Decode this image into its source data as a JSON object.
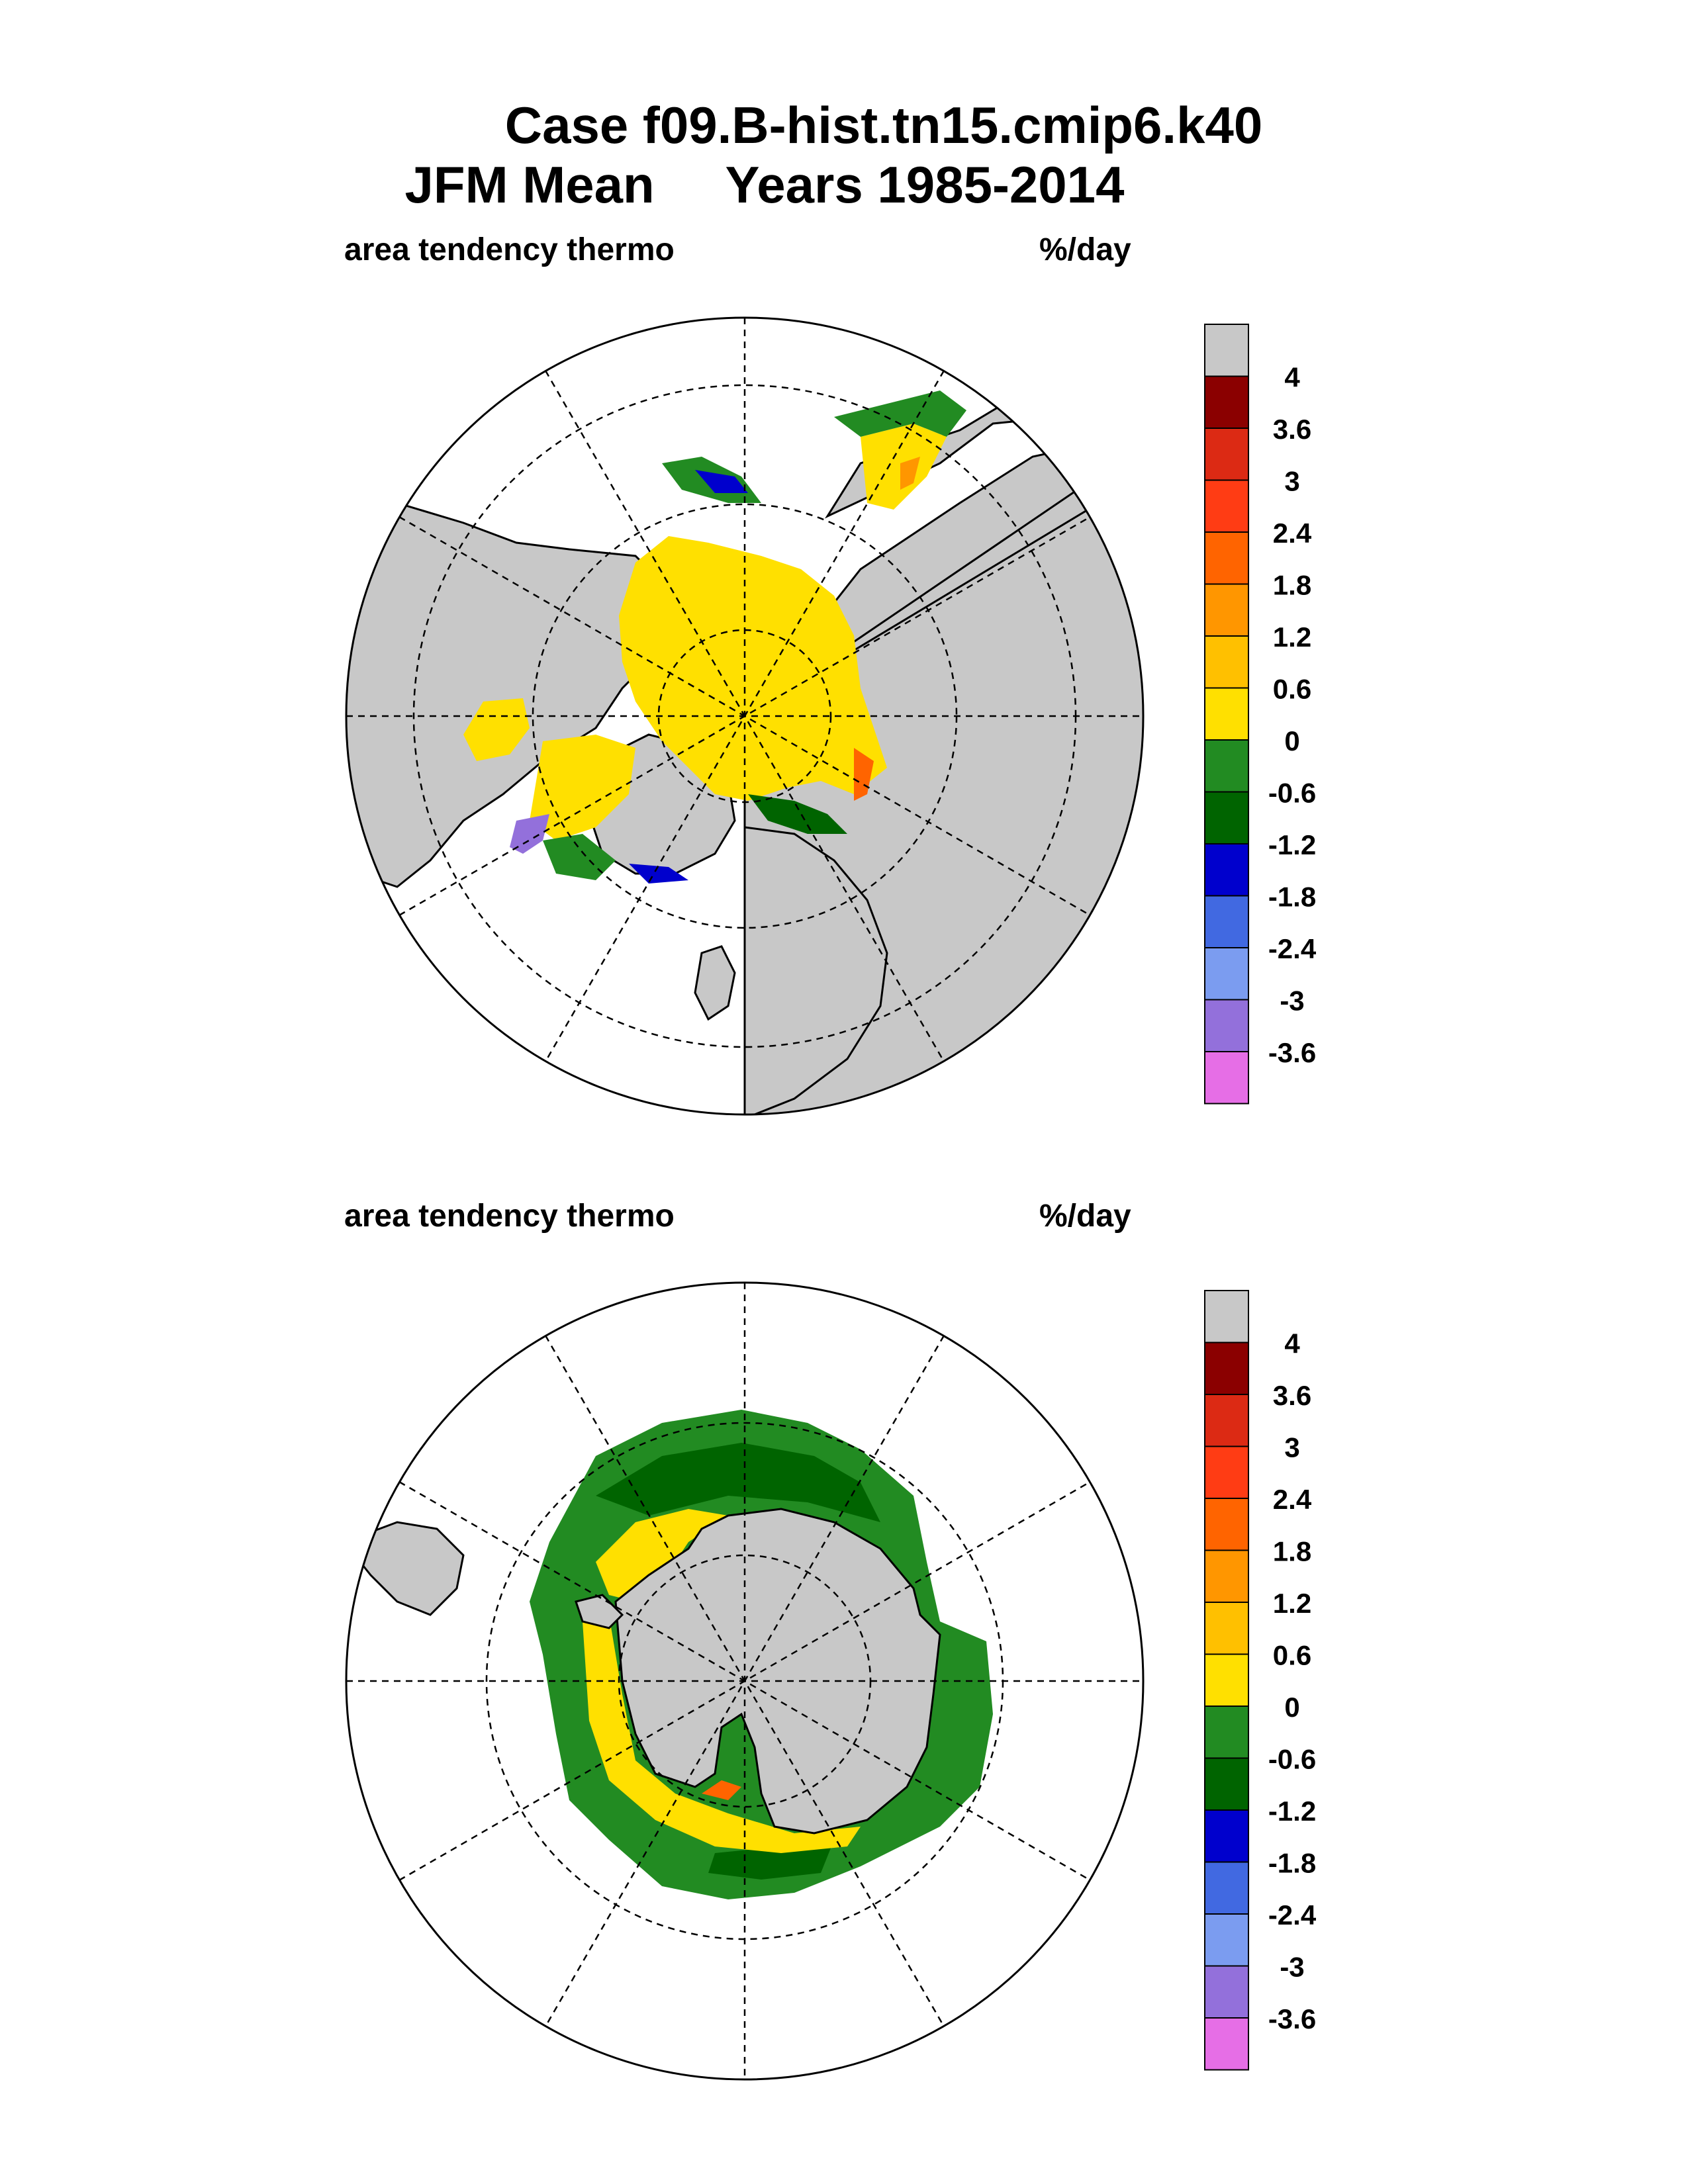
{
  "header": {
    "case_line": "Case f09.B-hist.tn15.cmip6.k40",
    "period_line": "JFM Mean     Years 1985-2014"
  },
  "panels": [
    {
      "id": "north",
      "hemisphere": "Northern Hemisphere",
      "variable_label": "area tendency thermo",
      "units": "%/day"
    },
    {
      "id": "south",
      "hemisphere": "Southern Hemisphere",
      "variable_label": "area tendency thermo",
      "units": "%/day"
    }
  ],
  "colorbar": {
    "labels": [
      "4",
      "3.6",
      "3",
      "2.4",
      "1.8",
      "1.2",
      "0.6",
      "0",
      "-0.6",
      "-1.2",
      "-1.8",
      "-2.4",
      "-3",
      "-3.6"
    ],
    "colors": [
      "#c8c8c8",
      "#8b0000",
      "#dc2a14",
      "#ff3c14",
      "#ff6400",
      "#ff9600",
      "#ffc000",
      "#ffe000",
      "#228b22",
      "#006400",
      "#0000cd",
      "#4169e1",
      "#7b9cf0",
      "#9370db",
      "#e66ee6"
    ],
    "land_color": "#c8c8c8"
  }
}
